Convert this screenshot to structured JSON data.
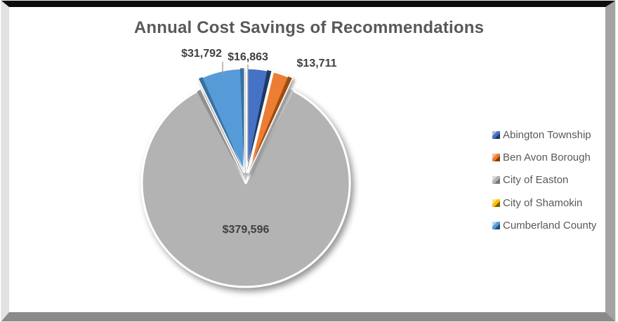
{
  "page": {
    "title": "Annual Cost Savings of Recommendations"
  },
  "chart_data": {
    "type": "pie",
    "title": "Annual Cost Savings of Recommendations",
    "legend_position": "right",
    "start_angle_deg": 0,
    "direction": "clockwise",
    "slices": [
      {
        "name": "Abington Township",
        "value": 16863,
        "label": "$16,863",
        "color": "#4472c4",
        "edge_color": "#1f3864",
        "marker_light": "#a9bade",
        "marker_dark": "#1f3864"
      },
      {
        "name": "Ben Avon Borough",
        "value": 13711,
        "label": "$13,711",
        "color": "#ed7d31",
        "edge_color": "#9c4d12",
        "marker_light": "#f5bd8f",
        "marker_dark": "#843c0c"
      },
      {
        "name": "City of Easton",
        "value": 379596,
        "label": "$379,596",
        "color": "#b3b3b3",
        "edge_color": "#8f8f8f",
        "light_edge_color": "#c9c9c9",
        "marker_light": "#dcdcdc",
        "marker_dark": "#757575"
      },
      {
        "name": "City of Shamokin",
        "value": null,
        "label": null,
        "color": "#ffc000",
        "edge_color": "#7f6000",
        "marker_light": "#ffe08a",
        "marker_dark": "#7f6000"
      },
      {
        "name": "Cumberland County",
        "value": 31792,
        "label": "$31,792",
        "color": "#579bd8",
        "edge_color": "#39719f",
        "marker_light": "#b4d4ec",
        "marker_dark": "#1f4e79"
      }
    ]
  }
}
